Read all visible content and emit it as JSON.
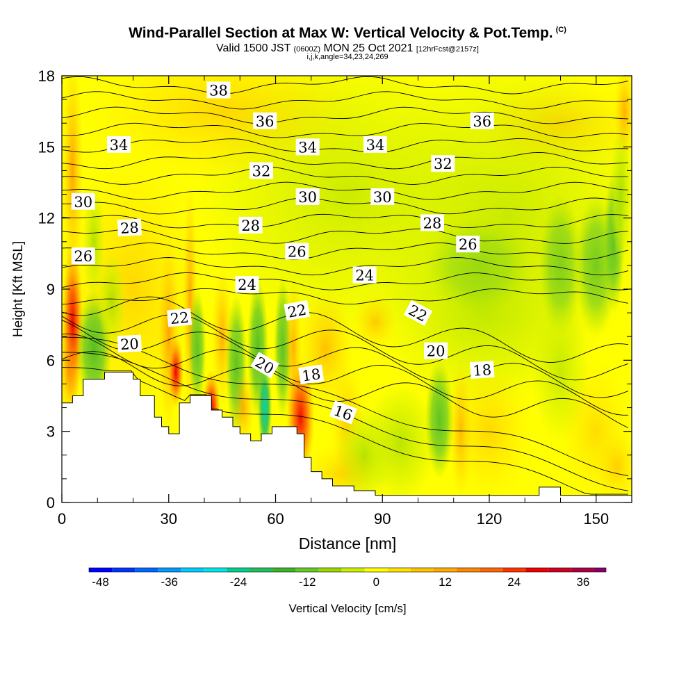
{
  "title": {
    "main": "Wind-Parallel Section at Max W: Vertical Velocity & Pot.Temp.",
    "mark": "(C)",
    "valid_prefix": "Valid 1500 JST",
    "valid_utc": "(0600Z)",
    "valid_date": "MON 25 Oct 2021",
    "forecast": "[12hrFcst@2157z]",
    "indices": "i,j,k,angle=34,23,24,269"
  },
  "chart_data": {
    "type": "heatmap",
    "xlabel": "Distance [nm]",
    "ylabel": "Height [Kft MSL]",
    "xlim": [
      0,
      160
    ],
    "ylim": [
      0,
      18
    ],
    "x_ticks": [
      0,
      30,
      60,
      90,
      120,
      150
    ],
    "y_ticks": [
      0,
      3,
      6,
      9,
      12,
      15,
      18
    ],
    "colorbar": {
      "label": "Vertical Velocity [cm/s]",
      "range": [
        -50,
        40
      ],
      "step": 4,
      "tick_labels": [
        "-48",
        "-36",
        "-24",
        "-12",
        "0",
        "12",
        "24",
        "36"
      ],
      "tick_values": [
        -48,
        -36,
        -24,
        -12,
        0,
        12,
        24,
        36
      ],
      "colors": [
        "#0000ff",
        "#0033ff",
        "#0066ff",
        "#0099ff",
        "#00ccff",
        "#00e6e6",
        "#00d08c",
        "#20c060",
        "#3cb428",
        "#66c828",
        "#99d800",
        "#ccee00",
        "#ffff00",
        "#ffe000",
        "#ffc400",
        "#ffaa00",
        "#ff8800",
        "#ff6600",
        "#ff3300",
        "#ee0000",
        "#cc0022",
        "#aa0044",
        "#880066",
        "#660088"
      ]
    },
    "terrain_top": [
      [
        0,
        4.2
      ],
      [
        3,
        4.2
      ],
      [
        3,
        4.5
      ],
      [
        6,
        4.5
      ],
      [
        6,
        5.2
      ],
      [
        12,
        5.2
      ],
      [
        12,
        5.5
      ],
      [
        20,
        5.5
      ],
      [
        20,
        5.2
      ],
      [
        22,
        5.2
      ],
      [
        22,
        4.5
      ],
      [
        26,
        4.5
      ],
      [
        26,
        3.6
      ],
      [
        28,
        3.6
      ],
      [
        28,
        3.2
      ],
      [
        30,
        3.2
      ],
      [
        30,
        2.9
      ],
      [
        33,
        2.9
      ],
      [
        33,
        4.2
      ],
      [
        36,
        4.2
      ],
      [
        36,
        4.5
      ],
      [
        42,
        4.5
      ],
      [
        42,
        3.9
      ],
      [
        45,
        3.9
      ],
      [
        45,
        3.6
      ],
      [
        48,
        3.6
      ],
      [
        48,
        3.2
      ],
      [
        50,
        3.2
      ],
      [
        50,
        2.9
      ],
      [
        53,
        2.9
      ],
      [
        53,
        2.6
      ],
      [
        56,
        2.6
      ],
      [
        56,
        2.9
      ],
      [
        59,
        2.9
      ],
      [
        59,
        3.2
      ],
      [
        66,
        3.2
      ],
      [
        66,
        2.9
      ],
      [
        68,
        2.9
      ],
      [
        68,
        1.9
      ],
      [
        70,
        1.9
      ],
      [
        70,
        1.3
      ],
      [
        73,
        1.3
      ],
      [
        73,
        1.0
      ],
      [
        76,
        1.0
      ],
      [
        76,
        0.7
      ],
      [
        82,
        0.7
      ],
      [
        82,
        0.5
      ],
      [
        88,
        0.5
      ],
      [
        88,
        0.3
      ],
      [
        134,
        0.3
      ],
      [
        134,
        0.65
      ],
      [
        140,
        0.65
      ],
      [
        140,
        0.3
      ],
      [
        160,
        0.3
      ],
      [
        160,
        0
      ]
    ],
    "theta_contours_C": [
      16,
      17,
      18,
      19,
      20,
      21,
      22,
      23,
      24,
      25,
      26,
      27,
      28,
      29,
      30,
      31,
      32,
      33,
      34,
      35,
      36,
      37,
      38
    ],
    "contour_labels": [
      {
        "text": "38",
        "x": 44,
        "y": 17.4,
        "angle": 0
      },
      {
        "text": "36",
        "x": 57,
        "y": 16.1,
        "angle": 0
      },
      {
        "text": "36",
        "x": 118,
        "y": 16.1,
        "angle": 0
      },
      {
        "text": "34",
        "x": 16,
        "y": 15.1,
        "angle": 0
      },
      {
        "text": "34",
        "x": 69,
        "y": 15.0,
        "angle": 0
      },
      {
        "text": "34",
        "x": 88,
        "y": 15.1,
        "angle": 0
      },
      {
        "text": "32",
        "x": 56,
        "y": 14.0,
        "angle": 0
      },
      {
        "text": "32",
        "x": 107,
        "y": 14.3,
        "angle": 0
      },
      {
        "text": "30",
        "x": 6,
        "y": 12.7,
        "angle": 0
      },
      {
        "text": "30",
        "x": 69,
        "y": 12.9,
        "angle": 0
      },
      {
        "text": "30",
        "x": 90,
        "y": 12.9,
        "angle": 0
      },
      {
        "text": "28",
        "x": 19,
        "y": 11.6,
        "angle": -3
      },
      {
        "text": "28",
        "x": 53,
        "y": 11.7,
        "angle": 0
      },
      {
        "text": "28",
        "x": 104,
        "y": 11.8,
        "angle": 0
      },
      {
        "text": "26",
        "x": 6,
        "y": 10.4,
        "angle": 0
      },
      {
        "text": "26",
        "x": 66,
        "y": 10.6,
        "angle": 0
      },
      {
        "text": "26",
        "x": 114,
        "y": 10.9,
        "angle": 0
      },
      {
        "text": "24",
        "x": 52,
        "y": 9.2,
        "angle": 0
      },
      {
        "text": "24",
        "x": 85,
        "y": 9.6,
        "angle": 0
      },
      {
        "text": "22",
        "x": 33,
        "y": 7.8,
        "angle": -5
      },
      {
        "text": "22",
        "x": 66,
        "y": 8.1,
        "angle": -10
      },
      {
        "text": "22",
        "x": 100,
        "y": 8.0,
        "angle": 28
      },
      {
        "text": "20",
        "x": 19,
        "y": 6.7,
        "angle": -3
      },
      {
        "text": "20",
        "x": 105,
        "y": 6.4,
        "angle": 0
      },
      {
        "text": "20",
        "x": 57,
        "y": 5.8,
        "angle": 30
      },
      {
        "text": "18",
        "x": 70,
        "y": 5.4,
        "angle": -8
      },
      {
        "text": "18",
        "x": 118,
        "y": 5.6,
        "angle": -4
      },
      {
        "text": "16",
        "x": 79,
        "y": 3.8,
        "angle": 20
      }
    ]
  }
}
